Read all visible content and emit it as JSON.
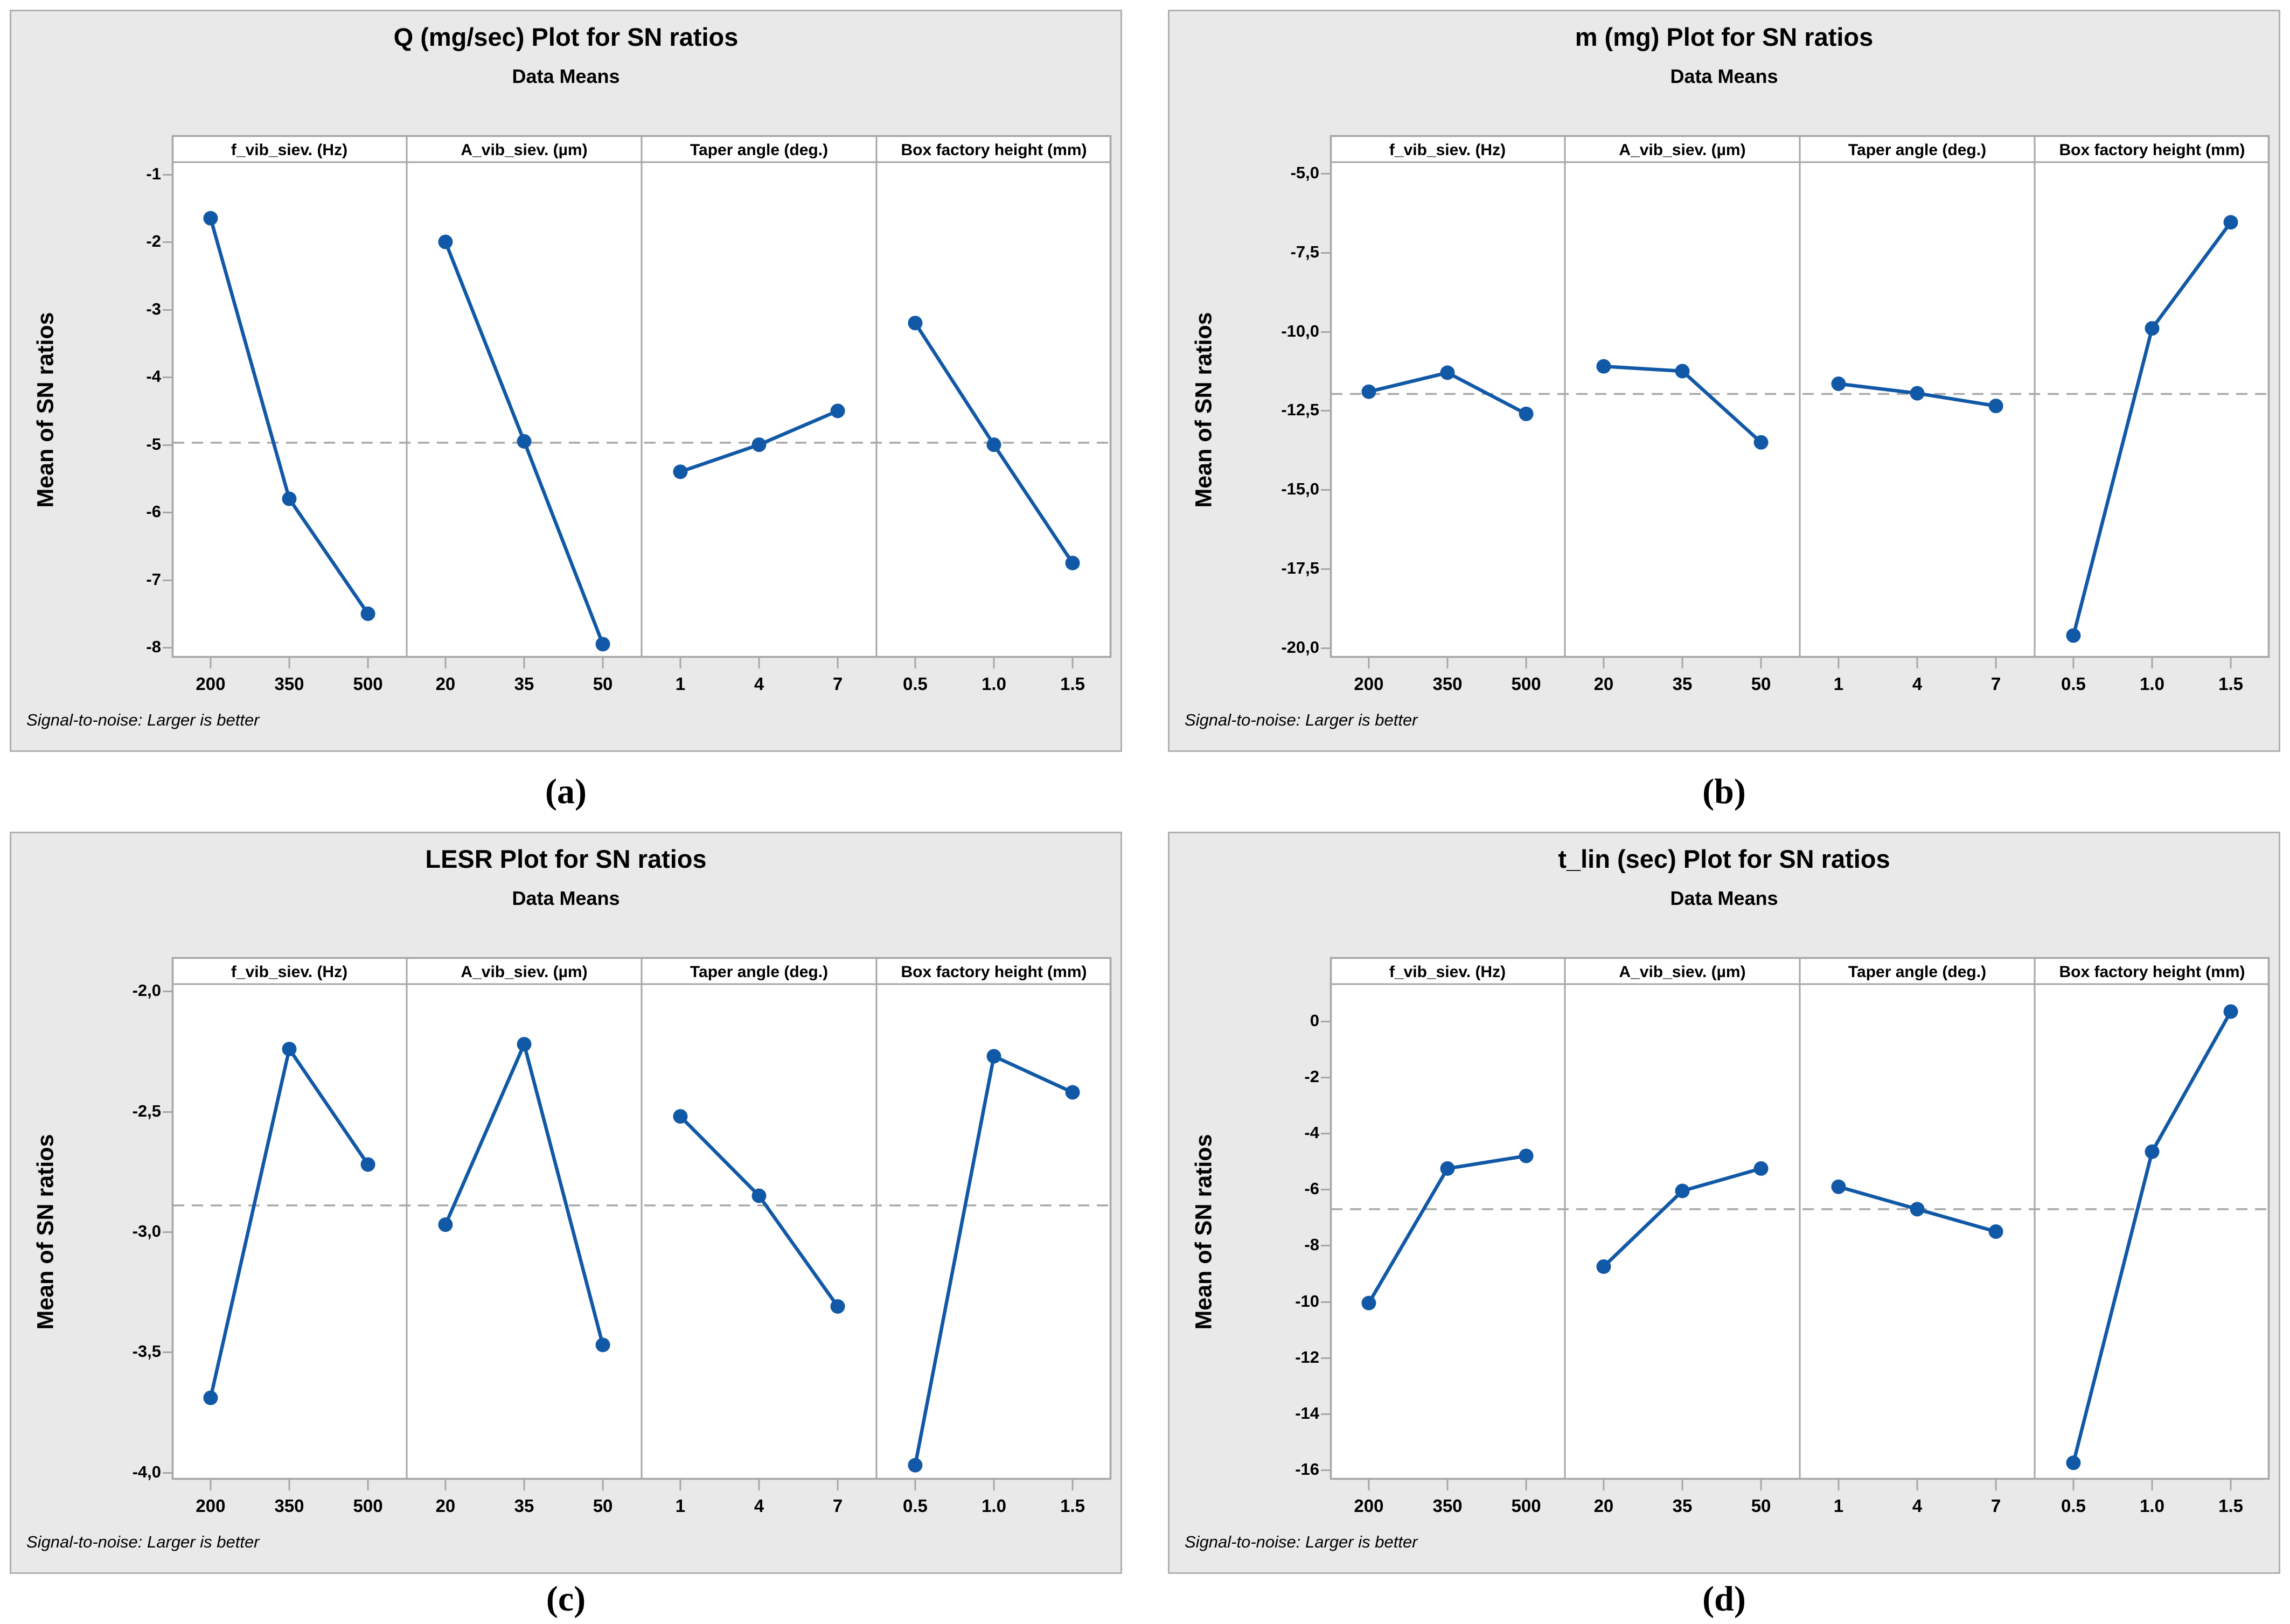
{
  "colors": {
    "series": "#1159a6",
    "mean_dashed": "#a8a8a8",
    "panel_border": "#a6a6a6",
    "canvas_bg": "#e9e9e9",
    "canvas_border": "#b0b0b0",
    "plot_bg": "#ffffff",
    "text": "#000000"
  },
  "chart_data": [
    {
      "id": "a",
      "caption": "(a)",
      "type": "line",
      "title": "Q (mg/sec) Plot for SN ratios",
      "subtitle": "Data Means",
      "ylabel": "Mean of SN ratios",
      "footnote": "Signal-to-noise: Larger is better",
      "grid": "off",
      "legend": "none",
      "mean_line": -4.97,
      "y_axis": {
        "range_top": -0.82,
        "range_bottom": -8.15,
        "ticks": [
          {
            "label": "-1",
            "value": -1
          },
          {
            "label": "-2",
            "value": -2
          },
          {
            "label": "-3",
            "value": -3
          },
          {
            "label": "-4",
            "value": -4
          },
          {
            "label": "-5",
            "value": -5
          },
          {
            "label": "-6",
            "value": -6
          },
          {
            "label": "-7",
            "value": -7
          },
          {
            "label": "-8",
            "value": -8
          }
        ]
      },
      "panels": [
        {
          "factor": "f_vib_siev. (Hz)",
          "x_labels": [
            "200",
            "350",
            "500"
          ],
          "values": [
            -1.65,
            -5.8,
            -7.5
          ]
        },
        {
          "factor": "A_vib_siev. (µm)",
          "x_labels": [
            "20",
            "35",
            "50"
          ],
          "values": [
            -2.0,
            -4.95,
            -7.95
          ]
        },
        {
          "factor": "Taper angle (deg.)",
          "x_labels": [
            "1",
            "4",
            "7"
          ],
          "values": [
            -5.4,
            -5.0,
            -4.5
          ]
        },
        {
          "factor": "Box factory height (mm)",
          "x_labels": [
            "0.5",
            "1.0",
            "1.5"
          ],
          "values": [
            -3.2,
            -5.0,
            -6.75
          ]
        }
      ]
    },
    {
      "id": "b",
      "caption": "(b)",
      "type": "line",
      "title": "m (mg) Plot for SN ratios",
      "subtitle": "Data Means",
      "ylabel": "Mean of SN ratios",
      "footnote": "Signal-to-noise: Larger is better",
      "grid": "off",
      "legend": "none",
      "mean_line": -11.97,
      "y_axis": {
        "range_top": -4.65,
        "range_bottom": -20.3,
        "ticks": [
          {
            "label": "-5,0",
            "value": -5.0
          },
          {
            "label": "-7,5",
            "value": -7.5
          },
          {
            "label": "-10,0",
            "value": -10.0
          },
          {
            "label": "-12,5",
            "value": -12.5
          },
          {
            "label": "-15,0",
            "value": -15.0
          },
          {
            "label": "-17,5",
            "value": -17.5
          },
          {
            "label": "-20,0",
            "value": -20.0
          }
        ]
      },
      "panels": [
        {
          "factor": "f_vib_siev. (Hz)",
          "x_labels": [
            "200",
            "350",
            "500"
          ],
          "values": [
            -11.9,
            -11.3,
            -12.6
          ]
        },
        {
          "factor": "A_vib_siev. (µm)",
          "x_labels": [
            "20",
            "35",
            "50"
          ],
          "values": [
            -11.1,
            -11.25,
            -13.5
          ]
        },
        {
          "factor": "Taper angle (deg.)",
          "x_labels": [
            "1",
            "4",
            "7"
          ],
          "values": [
            -11.65,
            -11.95,
            -12.35
          ]
        },
        {
          "factor": "Box factory height (mm)",
          "x_labels": [
            "0.5",
            "1.0",
            "1.5"
          ],
          "values": [
            -19.6,
            -9.9,
            -6.55
          ]
        }
      ]
    },
    {
      "id": "c",
      "caption": "(c)",
      "type": "line",
      "title": "LESR Plot for SN ratios",
      "subtitle": "Data Means",
      "ylabel": "Mean of SN ratios",
      "footnote": "Signal-to-noise: Larger is better",
      "grid": "off",
      "legend": "none",
      "mean_line": -2.89,
      "y_axis": {
        "range_top": -1.97,
        "range_bottom": -4.03,
        "ticks": [
          {
            "label": "-2,0",
            "value": -2.0
          },
          {
            "label": "-2,5",
            "value": -2.5
          },
          {
            "label": "-3,0",
            "value": -3.0
          },
          {
            "label": "-3,5",
            "value": -3.5
          },
          {
            "label": "-4,0",
            "value": -4.0
          }
        ]
      },
      "panels": [
        {
          "factor": "f_vib_siev. (Hz)",
          "x_labels": [
            "200",
            "350",
            "500"
          ],
          "values": [
            -3.69,
            -2.24,
            -2.72
          ]
        },
        {
          "factor": "A_vib_siev. (µm)",
          "x_labels": [
            "20",
            "35",
            "50"
          ],
          "values": [
            -2.97,
            -2.22,
            -3.47
          ]
        },
        {
          "factor": "Taper angle (deg.)",
          "x_labels": [
            "1",
            "4",
            "7"
          ],
          "values": [
            -2.52,
            -2.85,
            -3.31
          ]
        },
        {
          "factor": "Box factory height (mm)",
          "x_labels": [
            "0.5",
            "1.0",
            "1.5"
          ],
          "values": [
            -3.97,
            -2.27,
            -2.42
          ]
        }
      ]
    },
    {
      "id": "d",
      "caption": "(d)",
      "type": "line",
      "title": "t_lin (sec) Plot for SN ratios",
      "subtitle": "Data Means",
      "ylabel": "Mean of SN ratios",
      "footnote": "Signal-to-noise: Larger is better",
      "grid": "off",
      "legend": "none",
      "mean_line": -6.7,
      "y_axis": {
        "range_top": 1.33,
        "range_bottom": -16.35,
        "ticks": [
          {
            "label": "0",
            "value": 0
          },
          {
            "label": "-2",
            "value": -2
          },
          {
            "label": "-4",
            "value": -4
          },
          {
            "label": "-6",
            "value": -6
          },
          {
            "label": "-8",
            "value": -8
          },
          {
            "label": "-10",
            "value": -10
          },
          {
            "label": "-12",
            "value": -12
          },
          {
            "label": "-14",
            "value": -14
          },
          {
            "label": "-16",
            "value": -16
          }
        ]
      },
      "panels": [
        {
          "factor": "f_vib_siev. (Hz)",
          "x_labels": [
            "200",
            "350",
            "500"
          ],
          "values": [
            -10.05,
            -5.25,
            -4.8
          ]
        },
        {
          "factor": "A_vib_siev. (µm)",
          "x_labels": [
            "20",
            "35",
            "50"
          ],
          "values": [
            -8.75,
            -6.05,
            -5.25
          ]
        },
        {
          "factor": "Taper angle (deg.)",
          "x_labels": [
            "1",
            "4",
            "7"
          ],
          "values": [
            -5.9,
            -6.7,
            -7.5
          ]
        },
        {
          "factor": "Box factory height (mm)",
          "x_labels": [
            "0.5",
            "1.0",
            "1.5"
          ],
          "values": [
            -15.75,
            -4.65,
            0.35
          ]
        }
      ]
    }
  ]
}
